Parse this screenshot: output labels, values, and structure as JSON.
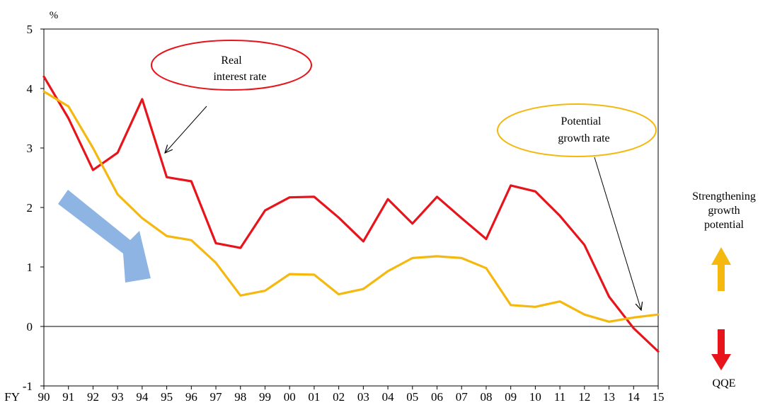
{
  "chart_data": {
    "type": "line",
    "unit_label": "%",
    "x_prefix": "FY",
    "categories": [
      "90",
      "91",
      "92",
      "93",
      "94",
      "95",
      "96",
      "97",
      "98",
      "99",
      "00",
      "01",
      "02",
      "03",
      "04",
      "05",
      "06",
      "07",
      "08",
      "09",
      "10",
      "11",
      "12",
      "13",
      "14",
      "15"
    ],
    "ylim": [
      -1,
      5
    ],
    "yticks": [
      -1,
      0,
      1,
      2,
      3,
      4,
      5
    ],
    "grid": false,
    "series": [
      {
        "name": "Real interest rate",
        "color": "#e8141b",
        "values": [
          4.2,
          3.5,
          2.63,
          2.92,
          3.82,
          2.51,
          2.44,
          1.4,
          1.32,
          1.95,
          2.17,
          2.18,
          1.83,
          1.43,
          2.14,
          1.73,
          2.18,
          1.82,
          1.47,
          2.37,
          2.27,
          1.86,
          1.37,
          0.5,
          -0.03,
          -0.42
        ]
      },
      {
        "name": "Potential growth rate",
        "color": "#f5b80f",
        "values": [
          3.95,
          3.7,
          3.0,
          2.22,
          1.82,
          1.52,
          1.45,
          1.07,
          0.52,
          0.6,
          0.88,
          0.87,
          0.54,
          0.63,
          0.93,
          1.15,
          1.18,
          1.15,
          0.98,
          0.36,
          0.33,
          0.42,
          0.2,
          0.08,
          0.15,
          0.2
        ]
      }
    ],
    "annotations": {
      "real_rate_callout": [
        "Real",
        "interest rate"
      ],
      "potential_callout": [
        "Potential",
        "growth rate"
      ]
    },
    "side_labels": {
      "up": [
        "Strengthening",
        "growth",
        "potential"
      ],
      "down": "QQE"
    },
    "colors": {
      "trend_arrow": "#8eb4e3",
      "up_arrow": "#f5b80f",
      "down_arrow": "#e8141b"
    }
  }
}
